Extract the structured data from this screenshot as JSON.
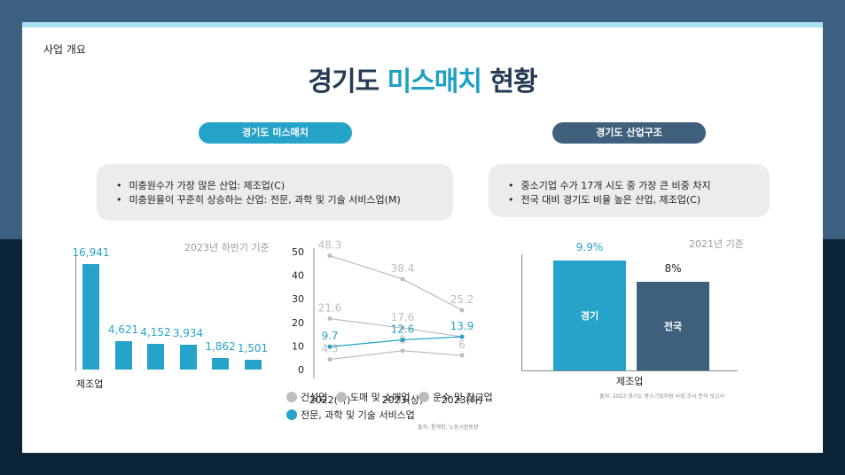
{
  "section_label": "사업 개요",
  "title": {
    "prefix": "경기도 ",
    "highlight": "미스매치",
    "suffix": " 현황"
  },
  "left_panel": {
    "pill": "경기도 미스매치",
    "bullets": [
      "미충원수가 가장 많은 산업: 제조업(C)",
      "미충원율이 꾸준히 상승하는 산업: 전문, 과학 및 기술 서비스업(M)"
    ],
    "caption": "2023년 하반기 기준",
    "source": "출처: 통계청, 노동시장동향"
  },
  "right_panel": {
    "pill": "경기도 산업구조",
    "bullets": [
      "중소기업 수가 17개 시도 중 가장 큰 비중 차지",
      "전국 대비 경기도 비율 높은 산업, 제조업(C)"
    ],
    "caption": "2021년 기준",
    "source": "출처: 2023 경기도 중소기업지원 사업 조사 분석 보고서"
  },
  "colors": {
    "blue": "#25a3c9",
    "navy": "#3f607c",
    "gray": "#bdbdbd"
  },
  "chart_data": [
    {
      "type": "bar",
      "title": "",
      "categories": [
        "제조업",
        "",
        "",
        "",
        "",
        ""
      ],
      "values": [
        16941,
        4621,
        4152,
        3934,
        1862,
        1501
      ],
      "labels": [
        "16,941",
        "4,621",
        "4,152",
        "3,934",
        "1,862",
        "1,501"
      ],
      "ylim": [
        0,
        18000
      ]
    },
    {
      "type": "line",
      "x": [
        "2022(하)",
        "2023(상)",
        "2023(하)"
      ],
      "yticks": [
        "50",
        "40",
        "30",
        "20",
        "10",
        "0"
      ],
      "ylim": [
        0,
        50
      ],
      "series": [
        {
          "name": "건설업",
          "values": [
            48.3,
            38.4,
            25.2
          ],
          "labels": [
            "48.3",
            "38.4",
            "25.2"
          ]
        },
        {
          "name": "도매 및 소매업",
          "values": [
            21.6,
            17.6,
            13.9
          ],
          "labels": [
            "21.6",
            "17.6",
            ""
          ]
        },
        {
          "name": "운수 및 창고업",
          "values": [
            4.3,
            8,
            6
          ],
          "labels": [
            "4.3",
            "8",
            "6"
          ]
        },
        {
          "name": "전문, 과학 및 기술 서비스업",
          "values": [
            9.7,
            12.6,
            13.9
          ],
          "labels": [
            "9.7",
            "12.6",
            "13.9"
          ]
        }
      ]
    },
    {
      "type": "bar",
      "categories": [
        "제조업"
      ],
      "series": [
        {
          "name": "경기",
          "values": [
            9.9
          ],
          "label": "9.9%"
        },
        {
          "name": "전국",
          "values": [
            8
          ],
          "label": "8%"
        }
      ],
      "ylim": [
        0,
        10.5
      ]
    }
  ]
}
